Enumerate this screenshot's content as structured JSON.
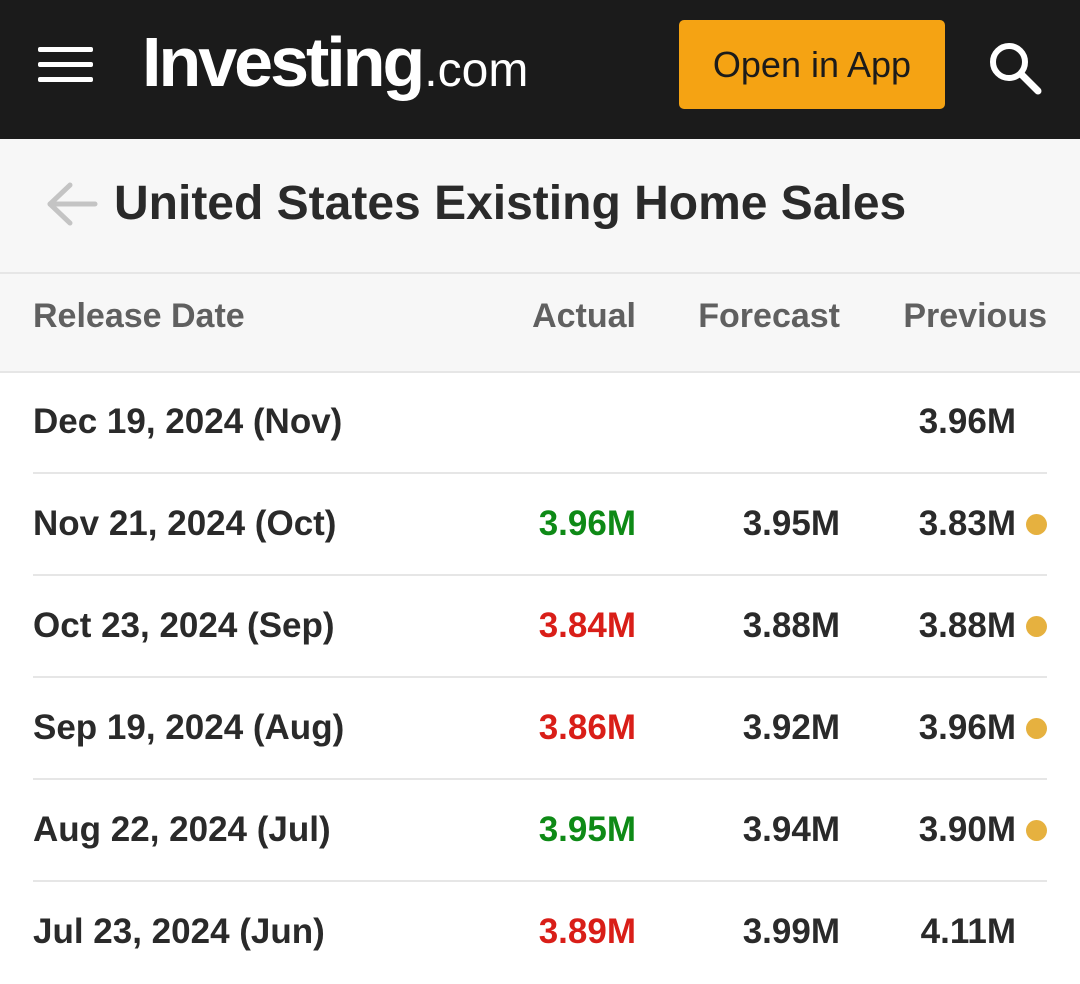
{
  "header": {
    "logo_main": "Investing",
    "logo_suffix": ".com",
    "open_app_label": "Open in App"
  },
  "page": {
    "title": "United States Existing Home Sales"
  },
  "table": {
    "columns": {
      "release_date": "Release Date",
      "actual": "Actual",
      "forecast": "Forecast",
      "previous": "Previous"
    },
    "rows": [
      {
        "date": "Dec 19, 2024 (Nov)",
        "actual": "",
        "actual_status": "none",
        "forecast": "",
        "previous": "3.96M",
        "revised": false
      },
      {
        "date": "Nov 21, 2024 (Oct)",
        "actual": "3.96M",
        "actual_status": "positive",
        "forecast": "3.95M",
        "previous": "3.83M",
        "revised": true
      },
      {
        "date": "Oct 23, 2024 (Sep)",
        "actual": "3.84M",
        "actual_status": "negative",
        "forecast": "3.88M",
        "previous": "3.88M",
        "revised": true
      },
      {
        "date": "Sep 19, 2024 (Aug)",
        "actual": "3.86M",
        "actual_status": "negative",
        "forecast": "3.92M",
        "previous": "3.96M",
        "revised": true
      },
      {
        "date": "Aug 22, 2024 (Jul)",
        "actual": "3.95M",
        "actual_status": "positive",
        "forecast": "3.94M",
        "previous": "3.90M",
        "revised": true
      },
      {
        "date": "Jul 23, 2024 (Jun)",
        "actual": "3.89M",
        "actual_status": "negative",
        "forecast": "3.99M",
        "previous": "4.11M",
        "revised": false
      }
    ]
  },
  "colors": {
    "topbar_bg": "#1b1b1b",
    "accent": "#f5a313",
    "positive": "#0e8a16",
    "negative": "#d91e18",
    "revised_dot": "#e6b13f"
  },
  "icons": {
    "menu": "hamburger-menu-icon",
    "search": "search-icon",
    "back": "back-arrow-icon",
    "revised": "revised-dot-icon"
  }
}
